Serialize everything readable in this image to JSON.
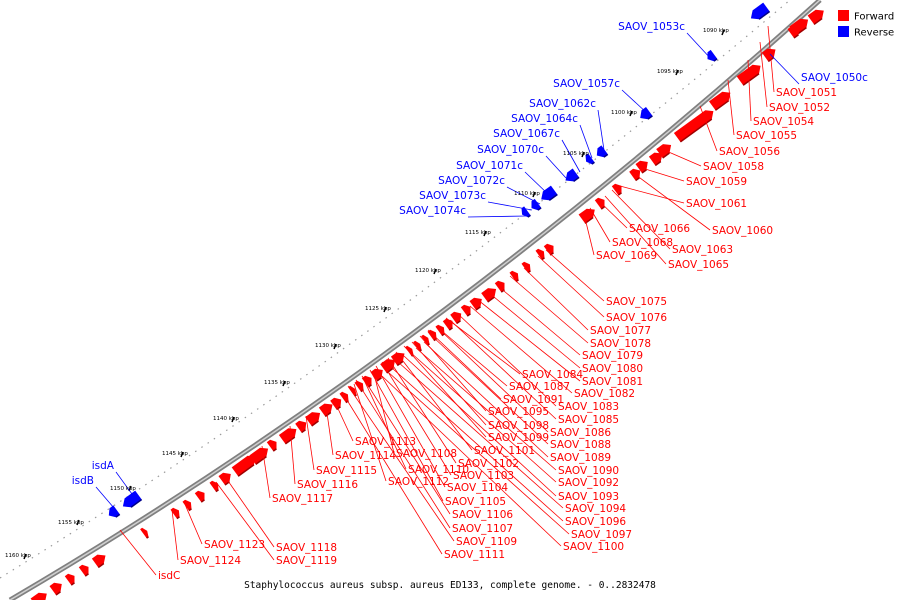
{
  "caption": "Staphylococcus aureus subsp. aureus ED133, complete genome. - 0..2832478",
  "legend": [
    {
      "label": "Forward",
      "color": "#ff0000"
    },
    {
      "label": "Reverse",
      "color": "#0000ff"
    }
  ],
  "colors": {
    "forward": "#ff0000",
    "reverse": "#0000ff",
    "backbone": "#808080"
  },
  "ticks": [
    "1090 kbp",
    "1095 kbp",
    "1100 kbp",
    "1105 kbp",
    "1110 kbp",
    "1115 kbp",
    "1120 kbp",
    "1125 kbp",
    "1130 kbp",
    "1135 kbp",
    "1140 kbp",
    "1145 kbp",
    "1150 kbp",
    "1155 kbp",
    "1160 kbp"
  ],
  "forward_labels": [
    "SAOV_1051",
    "SAOV_1052",
    "SAOV_1054",
    "SAOV_1055",
    "SAOV_1056",
    "SAOV_1058",
    "SAOV_1059",
    "SAOV_1061",
    "SAOV_1060",
    "SAOV_1066",
    "SAOV_1063",
    "SAOV_1068",
    "SAOV_1069",
    "SAOV_1065",
    "SAOV_1075",
    "SAOV_1076",
    "SAOV_1077",
    "SAOV_1078",
    "SAOV_1079",
    "SAOV_1080",
    "SAOV_1084",
    "SAOV_1081",
    "SAOV_1087",
    "SAOV_1082",
    "SAOV_1091",
    "SAOV_1083",
    "SAOV_1095",
    "SAOV_1085",
    "SAOV_1098",
    "SAOV_1086",
    "SAOV_1099",
    "SAOV_1088",
    "SAOV_1113",
    "SAOV_1101",
    "SAOV_1089",
    "SAOV_1114",
    "SAOV_1108",
    "SAOV_1102",
    "SAOV_1090",
    "SAOV_1115",
    "SAOV_1110",
    "SAOV_1103",
    "SAOV_1092",
    "SAOV_1116",
    "SAOV_1112",
    "SAOV_1104",
    "SAOV_1093",
    "SAOV_1117",
    "SAOV_1105",
    "SAOV_1094",
    "SAOV_1106",
    "SAOV_1096",
    "SAOV_1107",
    "SAOV_1097",
    "SAOV_1118",
    "SAOV_1123",
    "SAOV_1109",
    "SAOV_1100",
    "SAOV_1119",
    "SAOV_1124",
    "SAOV_1111",
    "isdC"
  ],
  "reverse_labels": [
    "SAOV_1053c",
    "SAOV_1050c",
    "SAOV_1057c",
    "SAOV_1062c",
    "SAOV_1064c",
    "SAOV_1067c",
    "SAOV_1070c",
    "SAOV_1071c",
    "SAOV_1072c",
    "SAOV_1073c",
    "SAOV_1074c",
    "isdA",
    "isdB"
  ]
}
